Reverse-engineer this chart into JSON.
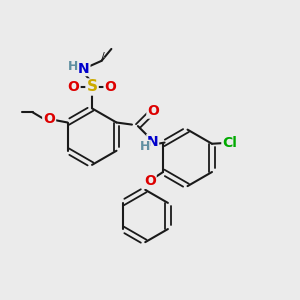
{
  "bg_color": "#ebebeb",
  "bond_color": "#1a1a1a",
  "colors": {
    "C": "#000000",
    "H": "#5f8fa0",
    "N": "#0000cc",
    "O": "#dd0000",
    "S": "#ccaa00",
    "Cl": "#00aa00"
  },
  "figsize": [
    3.0,
    3.0
  ],
  "dpi": 100,
  "xlim": [
    0,
    10
  ],
  "ylim": [
    0,
    10
  ]
}
